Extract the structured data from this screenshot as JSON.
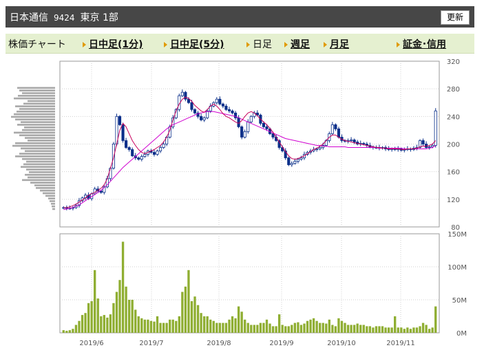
{
  "header": {
    "company": "日本通信",
    "code": "9424",
    "market": "東京 1部",
    "refresh_label": "更新"
  },
  "tabs": {
    "chart_label": "株価チャート",
    "intraday1": "日中足(1分)",
    "intraday5": "日中足(5分)",
    "daily": "日足",
    "weekly": "週足",
    "monthly": "月足",
    "margin": "証金･信用"
  },
  "colors": {
    "header_bg": "#474747",
    "tab_bg": "#e5f0d0",
    "up_candle": "#0a2f8a",
    "ma_short": "#c8005c",
    "ma_long": "#d000d0",
    "volume_bar": "#8fae32",
    "volume_profile": "#a8a8a8",
    "arrow": "#e09a00"
  },
  "chart_data": [
    {
      "type": "candlestick",
      "y_ticks": [
        "320",
        "280",
        "240",
        "200",
        "160",
        "120",
        "80"
      ],
      "ylim": [
        80,
        320
      ],
      "x_ticks": [
        "2019/6",
        "2019/7",
        "2019/8",
        "2019/9",
        "2019/10",
        "2019/11"
      ],
      "closes": [
        108,
        107,
        107,
        108,
        111,
        118,
        122,
        126,
        121,
        128,
        135,
        132,
        130,
        138,
        150,
        165,
        200,
        240,
        228,
        205,
        195,
        192,
        183,
        180,
        178,
        182,
        185,
        190,
        188,
        185,
        190,
        195,
        200,
        210,
        225,
        238,
        250,
        270,
        275,
        265,
        260,
        250,
        245,
        240,
        235,
        238,
        248,
        255,
        260,
        265,
        258,
        255,
        250,
        248,
        245,
        238,
        225,
        210,
        218,
        232,
        240,
        245,
        242,
        230,
        225,
        222,
        215,
        210,
        205,
        195,
        190,
        180,
        170,
        172,
        175,
        178,
        180,
        185,
        188,
        190,
        192,
        193,
        195,
        198,
        205,
        215,
        228,
        222,
        210,
        205,
        204,
        205,
        206,
        203,
        200,
        201,
        200,
        198,
        196,
        195,
        195,
        194,
        195,
        193,
        192,
        193,
        192,
        193,
        191,
        192,
        193,
        192,
        194,
        195,
        205,
        200,
        195,
        196,
        198,
        248
      ],
      "ma_short": [
        108,
        108,
        109,
        111,
        113,
        116,
        119,
        122,
        126,
        128,
        130,
        133,
        136,
        141,
        150,
        165,
        180,
        200,
        220,
        230,
        225,
        215,
        205,
        198,
        192,
        188,
        186,
        188,
        190,
        192,
        195,
        198,
        203,
        210,
        220,
        235,
        248,
        258,
        265,
        268,
        266,
        262,
        256,
        252,
        248,
        246,
        250,
        255,
        258,
        255,
        250,
        244,
        240,
        238,
        235,
        232,
        230,
        234,
        240,
        245,
        247,
        245,
        241,
        236,
        232,
        228,
        223,
        217,
        210,
        203,
        196,
        189,
        183,
        179,
        178,
        179,
        181,
        183,
        186,
        189,
        192,
        194,
        197,
        200,
        205,
        210,
        213,
        213,
        210,
        207,
        205,
        204,
        203,
        202,
        201,
        200,
        199,
        198,
        197,
        196,
        195,
        195,
        194,
        194,
        193,
        193,
        193,
        193,
        192,
        192,
        193,
        193,
        193,
        194,
        196,
        197,
        197,
        198,
        200,
        205
      ],
      "ma_long": [
        105,
        106,
        107,
        108,
        110,
        112,
        115,
        118,
        121,
        124,
        127,
        130,
        133,
        137,
        141,
        146,
        151,
        156,
        161,
        166,
        170,
        174,
        178,
        182,
        186,
        190,
        194,
        198,
        202,
        206,
        210,
        214,
        218,
        222,
        225,
        228,
        230,
        232,
        234,
        236,
        238,
        240,
        242,
        244,
        245,
        246,
        247,
        247,
        247,
        246,
        245,
        244,
        243,
        242,
        241,
        240,
        238,
        236,
        234,
        232,
        230,
        228,
        226,
        224,
        222,
        220,
        218,
        216,
        214,
        212,
        210,
        208,
        207,
        206,
        205,
        204,
        203,
        202,
        201,
        200,
        199,
        198,
        198,
        197,
        197,
        196,
        196,
        196,
        196,
        196,
        196,
        195,
        195,
        195,
        195,
        195,
        195,
        195,
        195,
        195,
        195,
        194,
        194,
        194,
        194,
        194,
        194,
        194,
        194,
        193,
        193,
        193,
        193,
        193,
        193,
        193,
        193,
        194,
        195,
        198
      ],
      "volume_profile": [
        55,
        52,
        48,
        54,
        60,
        40,
        46,
        58,
        52,
        56,
        60,
        64,
        58,
        50,
        55,
        45,
        48,
        60,
        52,
        44,
        40,
        58,
        62,
        50,
        44,
        52,
        58,
        48,
        42,
        46,
        50,
        42,
        38,
        44,
        40,
        48,
        36,
        30,
        28,
        22,
        18,
        14,
        10,
        8,
        6,
        5,
        4
      ]
    },
    {
      "type": "bar",
      "y_ticks": [
        "150M",
        "100M",
        "50M",
        "0M"
      ],
      "ylim": [
        0,
        150
      ],
      "unit": "M",
      "values": [
        4,
        3,
        4,
        6,
        12,
        18,
        27,
        30,
        45,
        48,
        95,
        52,
        25,
        27,
        23,
        28,
        45,
        62,
        80,
        138,
        70,
        50,
        50,
        35,
        25,
        22,
        20,
        20,
        18,
        17,
        25,
        15,
        15,
        15,
        20,
        20,
        18,
        25,
        62,
        70,
        95,
        48,
        55,
        42,
        30,
        25,
        25,
        20,
        18,
        15,
        15,
        15,
        15,
        20,
        25,
        22,
        40,
        32,
        20,
        15,
        12,
        12,
        12,
        15,
        15,
        20,
        14,
        10,
        10,
        28,
        12,
        10,
        10,
        12,
        15,
        16,
        12,
        14,
        18,
        20,
        22,
        18,
        15,
        15,
        14,
        20,
        12,
        10,
        22,
        18,
        15,
        12,
        12,
        12,
        14,
        12,
        12,
        10,
        10,
        8,
        10,
        10,
        10,
        8,
        8,
        8,
        25,
        8,
        8,
        6,
        8,
        6,
        8,
        8,
        10,
        15,
        12,
        6,
        8,
        40
      ]
    }
  ]
}
